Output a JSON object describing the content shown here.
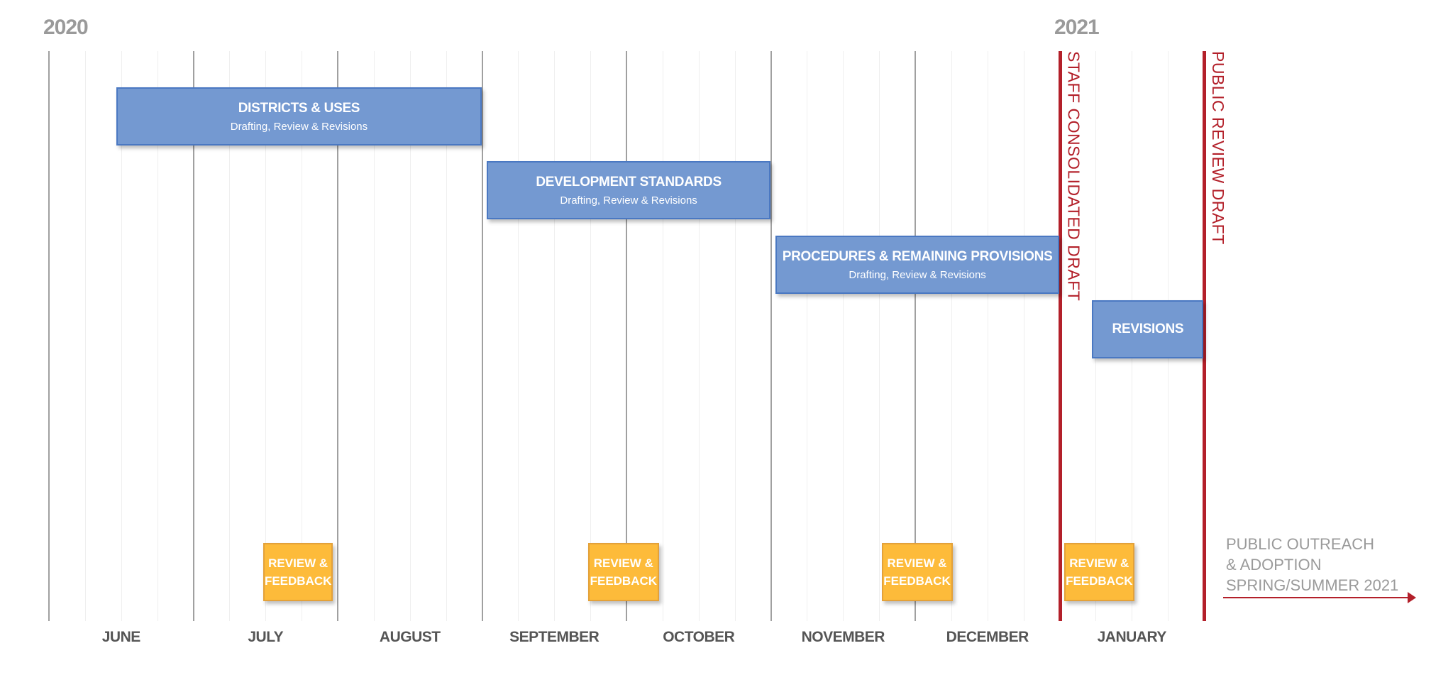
{
  "chart_data": {
    "type": "gantt",
    "years": [
      "2020",
      "2021"
    ],
    "x_range": [
      "2020-06-01",
      "2021-02-01"
    ],
    "months": [
      "JUNE",
      "JULY",
      "AUGUST",
      "SEPTEMBER",
      "OCTOBER",
      "NOVEMBER",
      "DECEMBER",
      "JANUARY"
    ],
    "tasks": [
      {
        "title": "DISTRICTS & USES",
        "subtitle": "Drafting, Review & Revisions",
        "start": "2020-06-15",
        "end": "2020-08-31"
      },
      {
        "title": "DEVELOPMENT STANDARDS",
        "subtitle": "Drafting, Review & Revisions",
        "start": "2020-09-02",
        "end": "2020-10-31"
      },
      {
        "title": "PROCEDURES & REMAINING PROVISIONS",
        "subtitle": "Drafting, Review & Revisions",
        "start": "2020-11-02",
        "end": "2020-12-31"
      },
      {
        "title": "REVISIONS",
        "subtitle": "",
        "start": "2021-01-08",
        "end": "2021-01-31"
      }
    ],
    "reviews": [
      {
        "label_line1": "REVIEW &",
        "label_line2": "FEEDBACK",
        "start": "2020-07-16",
        "end": "2020-07-31"
      },
      {
        "label_line1": "REVIEW &",
        "label_line2": "FEEDBACK",
        "start": "2020-09-23",
        "end": "2020-10-08"
      },
      {
        "label_line1": "REVIEW &",
        "label_line2": "FEEDBACK",
        "start": "2020-11-24",
        "end": "2020-12-09"
      },
      {
        "label_line1": "REVIEW &",
        "label_line2": "FEEDBACK",
        "start": "2021-01-02",
        "end": "2021-01-17"
      }
    ],
    "milestones": [
      {
        "label": "STAFF CONSOLIDATED  DRAFT",
        "date": "2021-01-01"
      },
      {
        "label": "PUBLIC REVIEW DRAFT",
        "date": "2021-02-01"
      }
    ],
    "annotation": [
      "PUBLIC OUTREACH",
      "& ADOPTION",
      "SPRING/SUMMER 2021"
    ],
    "colors": {
      "task": "#7499d1",
      "review": "#fdbb3a",
      "milestone": "#b3202a",
      "grid": "#a0a0a0"
    },
    "grid": true
  }
}
